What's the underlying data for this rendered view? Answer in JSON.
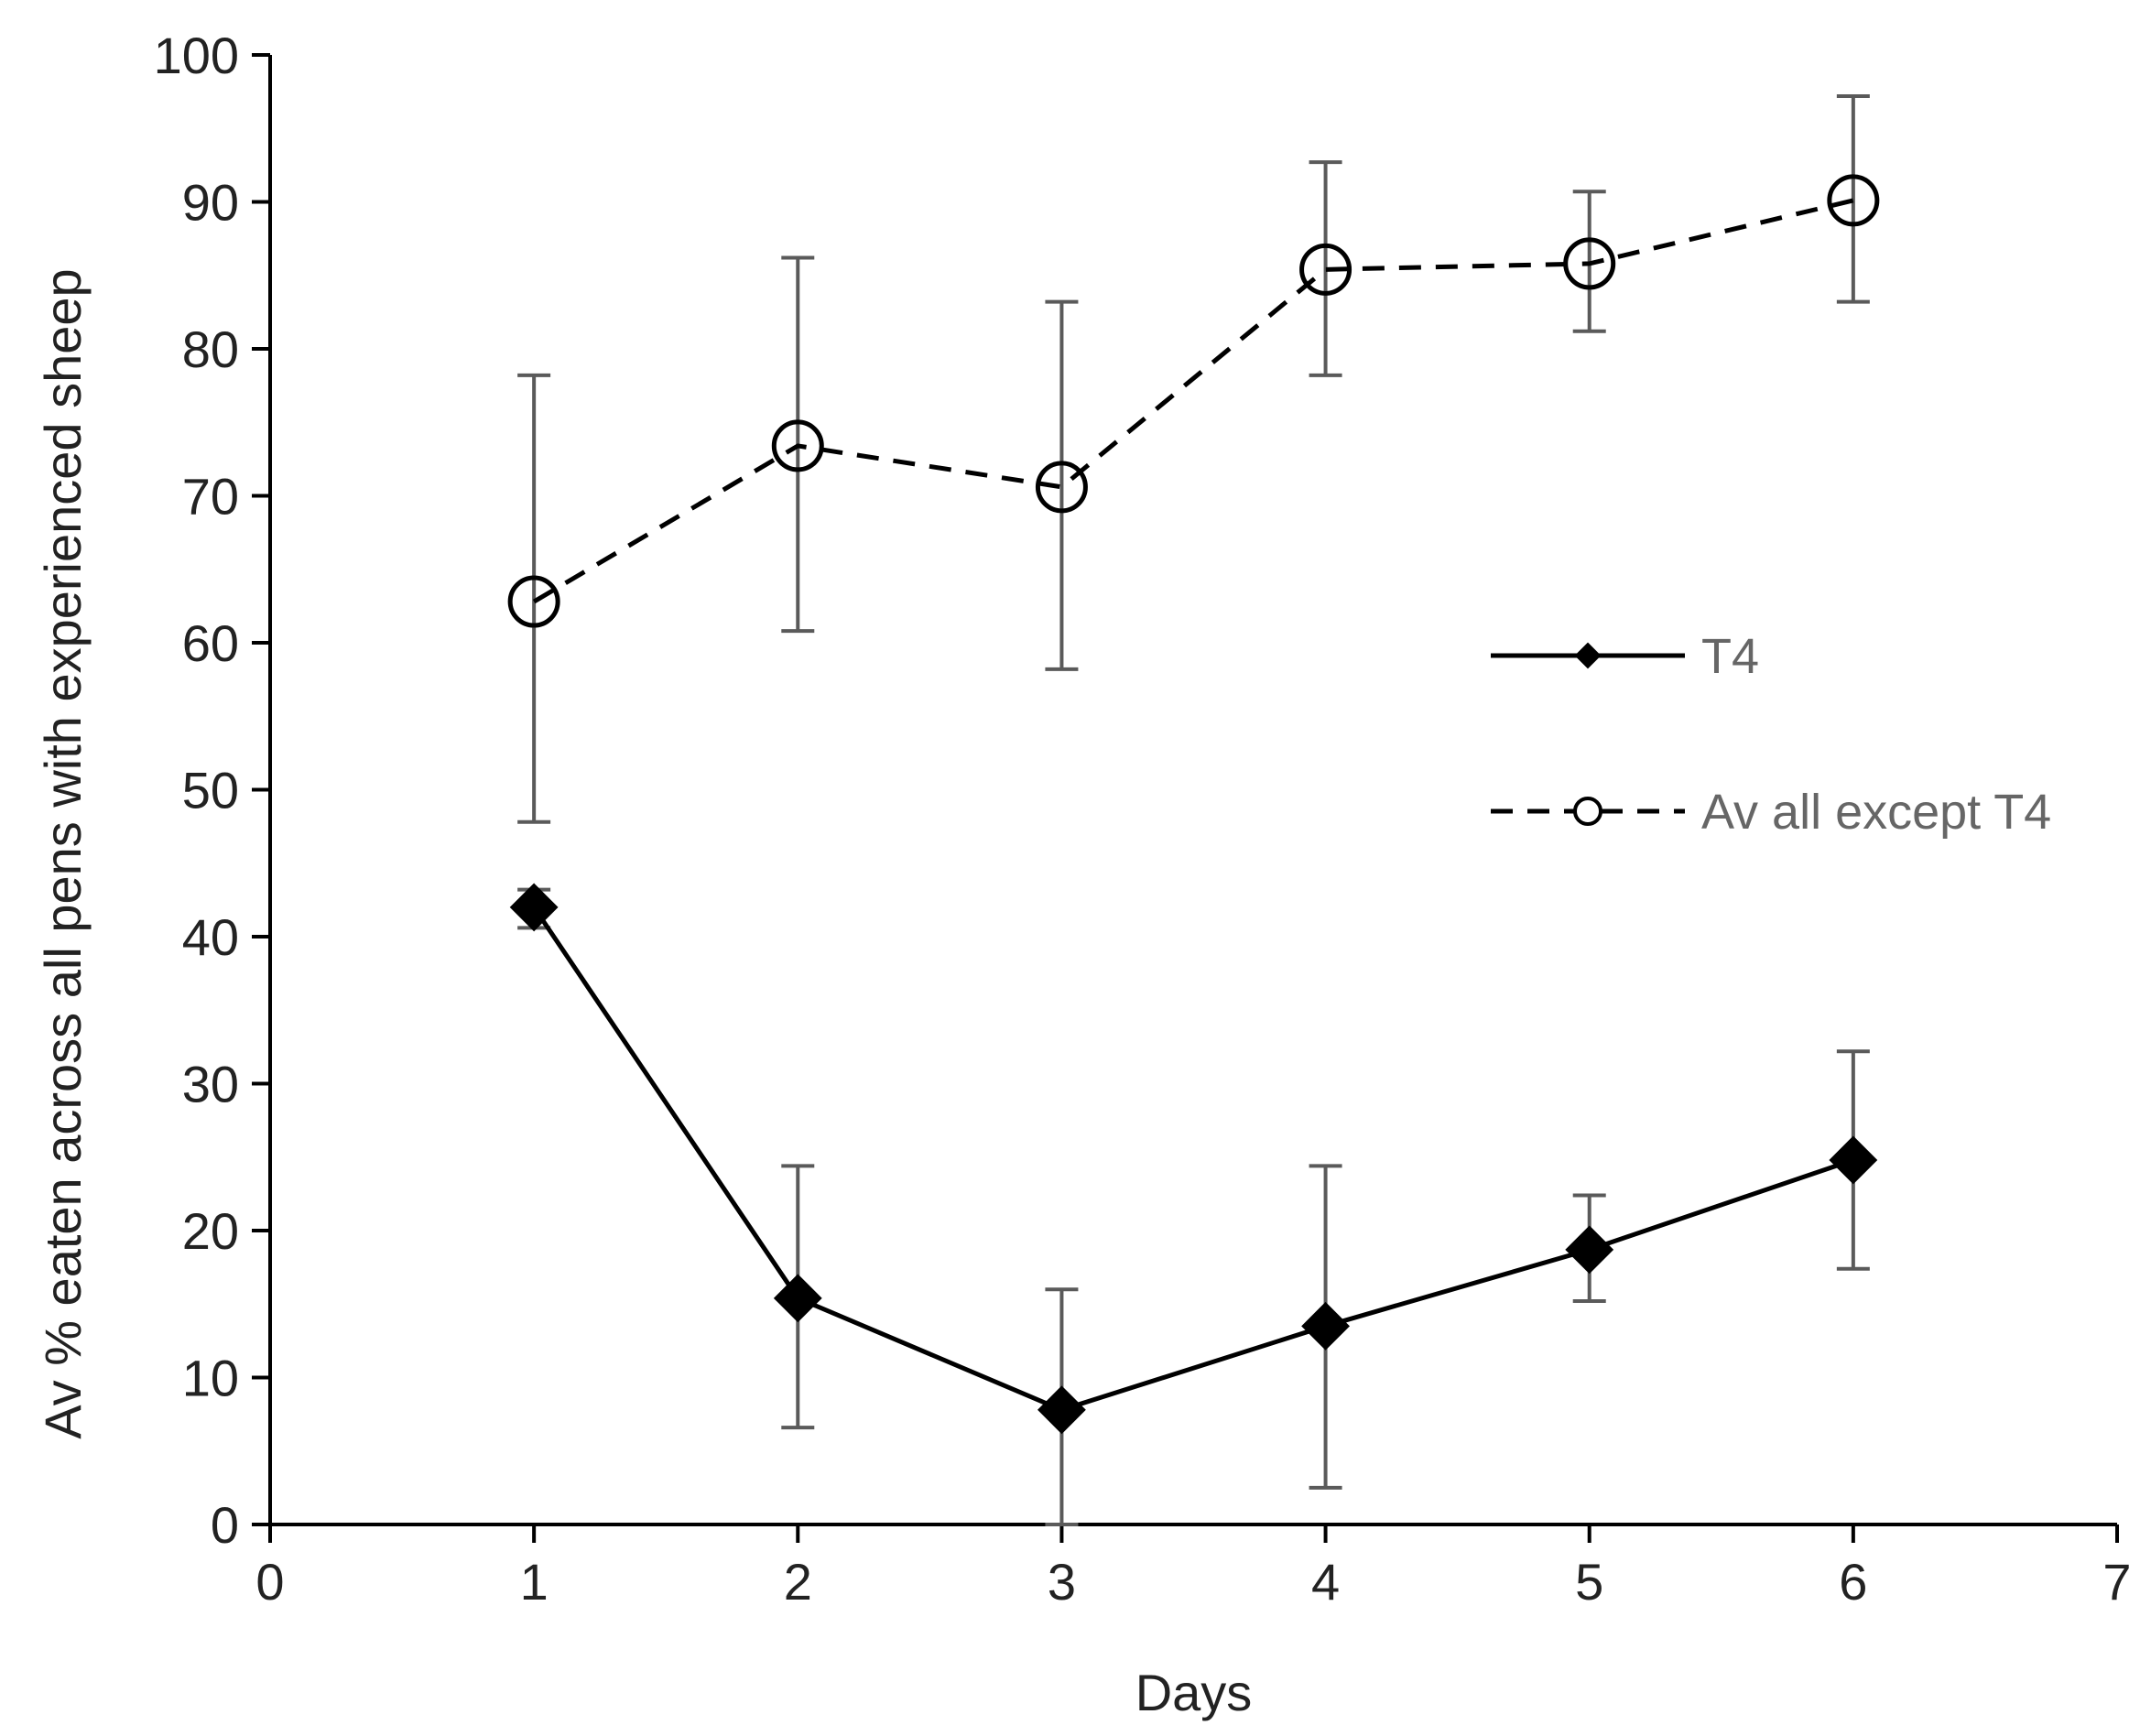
{
  "chart_data": {
    "type": "line",
    "title": "",
    "xlabel": "Days",
    "ylabel": "Av % eaten across all pens with experienced sheep",
    "xlim": [
      0,
      7
    ],
    "ylim": [
      0,
      100
    ],
    "x_ticks": [
      0,
      1,
      2,
      3,
      4,
      5,
      6,
      7
    ],
    "y_ticks": [
      0,
      10,
      20,
      30,
      40,
      50,
      60,
      70,
      80,
      90,
      100
    ],
    "grid": false,
    "legend_position": "right",
    "series": [
      {
        "name": "T4",
        "marker": "diamond",
        "line_style": "solid",
        "color": "#000000",
        "x": [
          1,
          2,
          3,
          4,
          5,
          6
        ],
        "values": [
          42,
          15.4,
          7.8,
          13.5,
          18.7,
          24.8
        ],
        "error_upper": [
          43.2,
          24.4,
          16,
          24.4,
          22.4,
          32.2
        ],
        "error_lower": [
          40.6,
          6.6,
          0,
          2.5,
          15.2,
          17.4
        ]
      },
      {
        "name": "Av all except T4",
        "marker": "open-circle",
        "line_style": "dashed",
        "color": "#000000",
        "x": [
          1,
          2,
          3,
          4,
          5,
          6
        ],
        "values": [
          62.8,
          73.4,
          70.6,
          85.4,
          85.8,
          90.1
        ],
        "error_upper": [
          78.2,
          86.2,
          83.2,
          92.7,
          90.7,
          97.2
        ],
        "error_lower": [
          47.8,
          60.8,
          58.2,
          78.2,
          81.2,
          83.2
        ]
      }
    ]
  }
}
